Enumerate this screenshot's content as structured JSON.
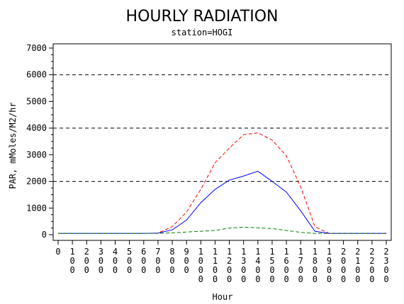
{
  "chart_data": {
    "type": "line",
    "title": "HOURLY RADIATION",
    "subtitle": "station=HOGI",
    "xlabel": "Hour",
    "ylabel": "PAR, mMoles/M2/hr",
    "ylim": [
      0,
      7000
    ],
    "y_ticks": [
      "0",
      "1000",
      "2000",
      "3000",
      "4000",
      "5000",
      "6000",
      "7000"
    ],
    "x_tick_labels": [
      "0",
      "100",
      "200",
      "300",
      "400",
      "500",
      "600",
      "700",
      "800",
      "900",
      "1000",
      "1100",
      "1200",
      "1300",
      "1400",
      "1500",
      "1600",
      "1700",
      "1800",
      "1900",
      "2000",
      "2100",
      "2200",
      "2300"
    ],
    "reference_lines": [
      2000,
      4000,
      6000
    ],
    "x": [
      0,
      100,
      200,
      300,
      400,
      500,
      600,
      700,
      800,
      900,
      1000,
      1100,
      1200,
      1300,
      1400,
      1500,
      1600,
      1700,
      1800,
      1900,
      2000,
      2100,
      2200,
      2300
    ],
    "series": [
      {
        "color": "#ff0000",
        "dash": "dashed",
        "values": [
          50,
          50,
          50,
          50,
          50,
          50,
          50,
          60,
          300,
          850,
          1700,
          2700,
          3250,
          3750,
          3820,
          3550,
          2950,
          1800,
          300,
          50,
          50,
          50,
          50,
          50
        ]
      },
      {
        "color": "#0000ff",
        "dash": "solid",
        "values": [
          50,
          50,
          50,
          50,
          50,
          50,
          50,
          60,
          180,
          550,
          1200,
          1700,
          2050,
          2200,
          2380,
          2000,
          1600,
          900,
          130,
          50,
          50,
          50,
          50,
          50
        ]
      },
      {
        "color": "#008000",
        "dash": "dashed",
        "values": [
          50,
          50,
          50,
          50,
          50,
          50,
          50,
          50,
          70,
          100,
          130,
          160,
          250,
          280,
          260,
          230,
          160,
          90,
          50,
          50,
          50,
          50,
          50,
          50
        ]
      }
    ]
  }
}
